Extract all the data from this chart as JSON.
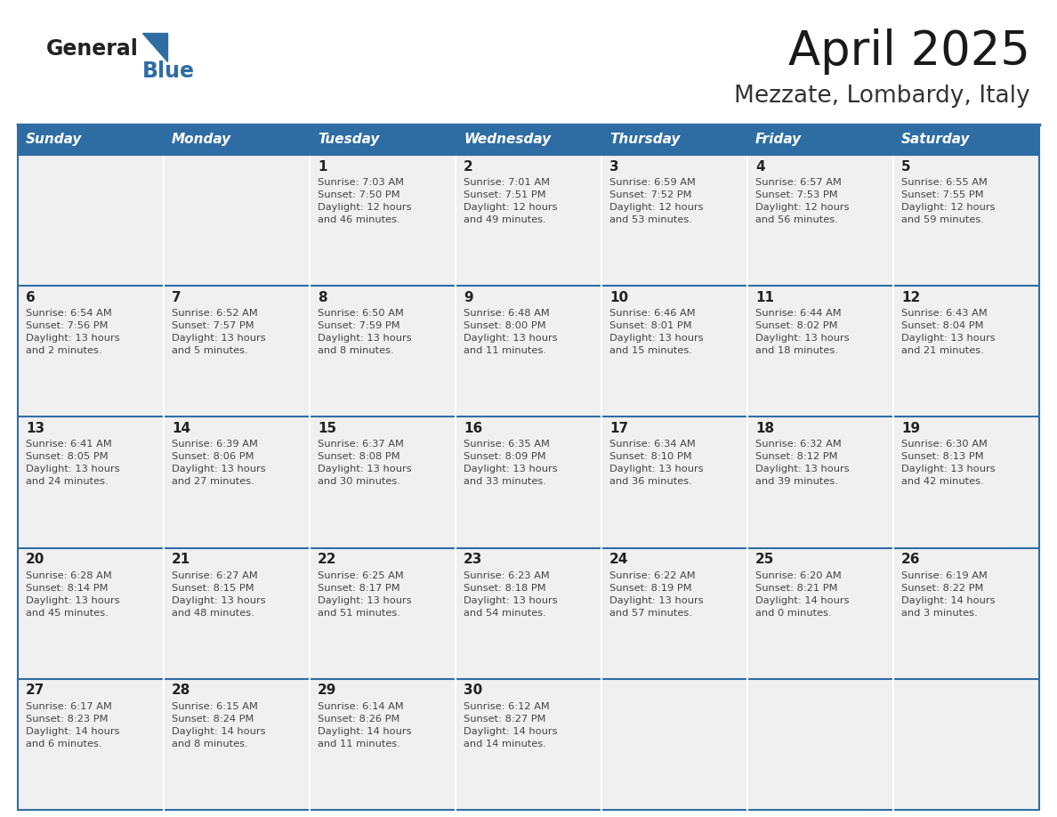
{
  "title": "April 2025",
  "subtitle": "Mezzate, Lombardy, Italy",
  "days_of_week": [
    "Sunday",
    "Monday",
    "Tuesday",
    "Wednesday",
    "Thursday",
    "Friday",
    "Saturday"
  ],
  "header_bg": "#2E6DA4",
  "header_text_color": "#FFFFFF",
  "cell_bg": "#F0F0F0",
  "grid_line_color": "#2E6DA4",
  "title_color": "#1a1a1a",
  "subtitle_color": "#333333",
  "day_number_color": "#222222",
  "info_text_color": "#444444",
  "logo_general_color": "#222222",
  "logo_blue_color": "#2E6DA4",
  "calendar": [
    [
      {
        "day": null,
        "info": ""
      },
      {
        "day": null,
        "info": ""
      },
      {
        "day": 1,
        "info": "Sunrise: 7:03 AM\nSunset: 7:50 PM\nDaylight: 12 hours\nand 46 minutes."
      },
      {
        "day": 2,
        "info": "Sunrise: 7:01 AM\nSunset: 7:51 PM\nDaylight: 12 hours\nand 49 minutes."
      },
      {
        "day": 3,
        "info": "Sunrise: 6:59 AM\nSunset: 7:52 PM\nDaylight: 12 hours\nand 53 minutes."
      },
      {
        "day": 4,
        "info": "Sunrise: 6:57 AM\nSunset: 7:53 PM\nDaylight: 12 hours\nand 56 minutes."
      },
      {
        "day": 5,
        "info": "Sunrise: 6:55 AM\nSunset: 7:55 PM\nDaylight: 12 hours\nand 59 minutes."
      }
    ],
    [
      {
        "day": 6,
        "info": "Sunrise: 6:54 AM\nSunset: 7:56 PM\nDaylight: 13 hours\nand 2 minutes."
      },
      {
        "day": 7,
        "info": "Sunrise: 6:52 AM\nSunset: 7:57 PM\nDaylight: 13 hours\nand 5 minutes."
      },
      {
        "day": 8,
        "info": "Sunrise: 6:50 AM\nSunset: 7:59 PM\nDaylight: 13 hours\nand 8 minutes."
      },
      {
        "day": 9,
        "info": "Sunrise: 6:48 AM\nSunset: 8:00 PM\nDaylight: 13 hours\nand 11 minutes."
      },
      {
        "day": 10,
        "info": "Sunrise: 6:46 AM\nSunset: 8:01 PM\nDaylight: 13 hours\nand 15 minutes."
      },
      {
        "day": 11,
        "info": "Sunrise: 6:44 AM\nSunset: 8:02 PM\nDaylight: 13 hours\nand 18 minutes."
      },
      {
        "day": 12,
        "info": "Sunrise: 6:43 AM\nSunset: 8:04 PM\nDaylight: 13 hours\nand 21 minutes."
      }
    ],
    [
      {
        "day": 13,
        "info": "Sunrise: 6:41 AM\nSunset: 8:05 PM\nDaylight: 13 hours\nand 24 minutes."
      },
      {
        "day": 14,
        "info": "Sunrise: 6:39 AM\nSunset: 8:06 PM\nDaylight: 13 hours\nand 27 minutes."
      },
      {
        "day": 15,
        "info": "Sunrise: 6:37 AM\nSunset: 8:08 PM\nDaylight: 13 hours\nand 30 minutes."
      },
      {
        "day": 16,
        "info": "Sunrise: 6:35 AM\nSunset: 8:09 PM\nDaylight: 13 hours\nand 33 minutes."
      },
      {
        "day": 17,
        "info": "Sunrise: 6:34 AM\nSunset: 8:10 PM\nDaylight: 13 hours\nand 36 minutes."
      },
      {
        "day": 18,
        "info": "Sunrise: 6:32 AM\nSunset: 8:12 PM\nDaylight: 13 hours\nand 39 minutes."
      },
      {
        "day": 19,
        "info": "Sunrise: 6:30 AM\nSunset: 8:13 PM\nDaylight: 13 hours\nand 42 minutes."
      }
    ],
    [
      {
        "day": 20,
        "info": "Sunrise: 6:28 AM\nSunset: 8:14 PM\nDaylight: 13 hours\nand 45 minutes."
      },
      {
        "day": 21,
        "info": "Sunrise: 6:27 AM\nSunset: 8:15 PM\nDaylight: 13 hours\nand 48 minutes."
      },
      {
        "day": 22,
        "info": "Sunrise: 6:25 AM\nSunset: 8:17 PM\nDaylight: 13 hours\nand 51 minutes."
      },
      {
        "day": 23,
        "info": "Sunrise: 6:23 AM\nSunset: 8:18 PM\nDaylight: 13 hours\nand 54 minutes."
      },
      {
        "day": 24,
        "info": "Sunrise: 6:22 AM\nSunset: 8:19 PM\nDaylight: 13 hours\nand 57 minutes."
      },
      {
        "day": 25,
        "info": "Sunrise: 6:20 AM\nSunset: 8:21 PM\nDaylight: 14 hours\nand 0 minutes."
      },
      {
        "day": 26,
        "info": "Sunrise: 6:19 AM\nSunset: 8:22 PM\nDaylight: 14 hours\nand 3 minutes."
      }
    ],
    [
      {
        "day": 27,
        "info": "Sunrise: 6:17 AM\nSunset: 8:23 PM\nDaylight: 14 hours\nand 6 minutes."
      },
      {
        "day": 28,
        "info": "Sunrise: 6:15 AM\nSunset: 8:24 PM\nDaylight: 14 hours\nand 8 minutes."
      },
      {
        "day": 29,
        "info": "Sunrise: 6:14 AM\nSunset: 8:26 PM\nDaylight: 14 hours\nand 11 minutes."
      },
      {
        "day": 30,
        "info": "Sunrise: 6:12 AM\nSunset: 8:27 PM\nDaylight: 14 hours\nand 14 minutes."
      },
      {
        "day": null,
        "info": ""
      },
      {
        "day": null,
        "info": ""
      },
      {
        "day": null,
        "info": ""
      }
    ]
  ]
}
